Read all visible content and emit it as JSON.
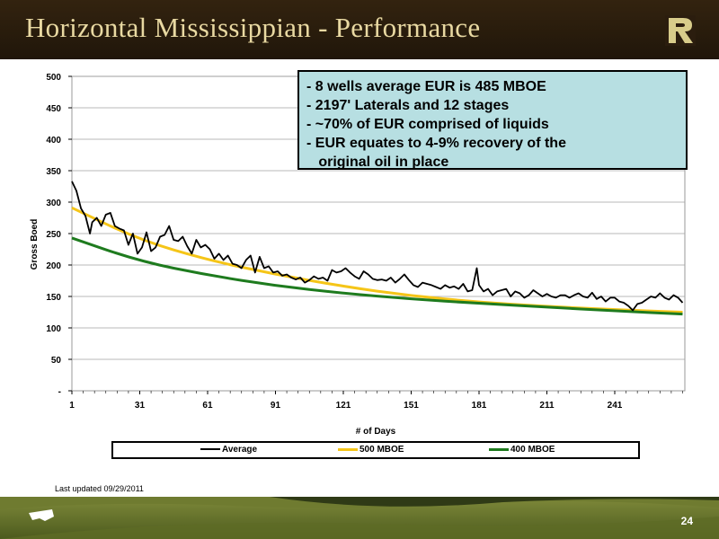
{
  "slide": {
    "title": "Horizontal Mississippian - Performance",
    "updated": "Last updated 09/29/2011",
    "page_number": "24"
  },
  "callout": {
    "lines": [
      "-  8 wells average EUR is 485 MBOE",
      "-  2197' Laterals and 12 stages",
      "-  ~70% of EUR comprised of liquids",
      "-  EUR equates to 4-9% recovery of the",
      "   original oil in place"
    ]
  },
  "colors": {
    "title_bg": "#2b1d0e",
    "title_text": "#e9d9a2",
    "callout_bg": "#b7dfe2",
    "average": "#000000",
    "mboe500": "#f5c518",
    "mboe400": "#1e7b1e"
  },
  "chart_data": {
    "type": "line",
    "xlabel": "# of Days",
    "ylabel": "Gross Boed",
    "ylim": [
      0,
      500
    ],
    "xlim": [
      1,
      272
    ],
    "yticks": [
      "-",
      "50",
      "100",
      "150",
      "200",
      "250",
      "300",
      "350",
      "400",
      "450",
      "500"
    ],
    "xticks": [
      "1",
      "31",
      "61",
      "91",
      "121",
      "151",
      "181",
      "211",
      "241"
    ],
    "grid": "horizontal",
    "legend": "bottom",
    "series": [
      {
        "name": "Average",
        "x": [
          1,
          3,
          5,
          7,
          9,
          10,
          12,
          14,
          16,
          18,
          20,
          22,
          24,
          26,
          28,
          30,
          32,
          34,
          36,
          38,
          40,
          42,
          44,
          46,
          48,
          50,
          52,
          54,
          56,
          58,
          60,
          62,
          64,
          66,
          68,
          70,
          72,
          74,
          76,
          78,
          80,
          82,
          84,
          86,
          88,
          90,
          92,
          94,
          96,
          98,
          100,
          102,
          104,
          106,
          108,
          110,
          112,
          114,
          116,
          118,
          120,
          122,
          124,
          126,
          128,
          130,
          132,
          134,
          136,
          138,
          140,
          142,
          144,
          146,
          148,
          150,
          152,
          154,
          156,
          158,
          160,
          162,
          164,
          166,
          168,
          170,
          172,
          174,
          176,
          178,
          180,
          181,
          183,
          185,
          187,
          189,
          191,
          193,
          195,
          197,
          199,
          201,
          203,
          205,
          207,
          209,
          211,
          213,
          215,
          217,
          219,
          221,
          223,
          225,
          227,
          229,
          231,
          233,
          235,
          237,
          239,
          241,
          243,
          245,
          247,
          249,
          251,
          253,
          255,
          257,
          259,
          261,
          263,
          265,
          267,
          269,
          271
        ],
        "values": [
          333,
          318,
          290,
          278,
          250,
          268,
          275,
          262,
          280,
          283,
          262,
          258,
          255,
          232,
          250,
          218,
          228,
          252,
          222,
          228,
          245,
          248,
          262,
          240,
          238,
          245,
          230,
          218,
          240,
          228,
          232,
          225,
          210,
          218,
          208,
          215,
          202,
          200,
          195,
          208,
          215,
          188,
          213,
          195,
          198,
          188,
          190,
          183,
          185,
          180,
          177,
          180,
          172,
          176,
          182,
          178,
          180,
          175,
          192,
          188,
          190,
          195,
          188,
          182,
          178,
          190,
          185,
          178,
          176,
          177,
          175,
          180,
          172,
          178,
          185,
          176,
          168,
          165,
          172,
          170,
          168,
          165,
          162,
          168,
          164,
          166,
          162,
          170,
          158,
          160,
          195,
          168,
          158,
          162,
          152,
          158,
          160,
          162,
          150,
          158,
          155,
          148,
          152,
          160,
          155,
          150,
          154,
          150,
          148,
          152,
          152,
          148,
          152,
          155,
          150,
          148,
          156,
          146,
          150,
          142,
          148,
          148,
          142,
          140,
          135,
          128,
          138,
          140,
          145,
          150,
          148,
          155,
          148,
          145,
          152,
          148,
          140
        ]
      },
      {
        "name": "500 MBOE",
        "x": [
          1,
          31,
          61,
          91,
          121,
          151,
          181,
          211,
          241,
          271
        ],
        "values": [
          291,
          240,
          208,
          185,
          166,
          151,
          141,
          134,
          129,
          125
        ]
      },
      {
        "name": "400 MBOE",
        "x": [
          1,
          31,
          61,
          91,
          121,
          151,
          181,
          211,
          241,
          271
        ],
        "values": [
          243,
          206,
          184,
          167,
          155,
          146,
          139,
          133,
          127,
          122
        ]
      }
    ]
  }
}
